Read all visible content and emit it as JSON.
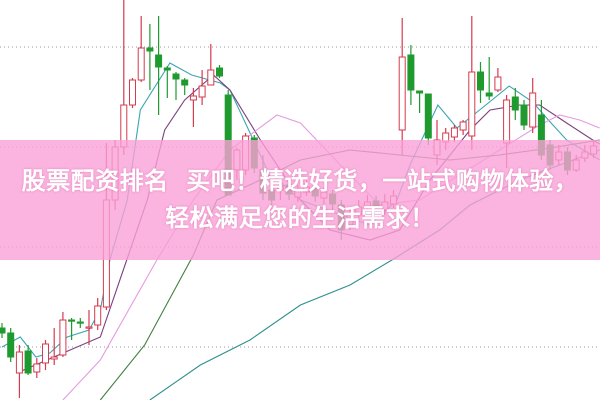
{
  "banner": {
    "text": "股票配资排名  买吧！精选好货，一站式购物体验，轻松满足您的生活需求！",
    "background_color": "#fba0d7"
  },
  "chart_data": {
    "type": "candlestick",
    "title": "",
    "xlabel": "",
    "ylabel": "",
    "ylim": [
      0,
      40
    ],
    "grid": true,
    "grid_levels": [
      35.3,
      25.3,
      15.3,
      5.3
    ],
    "legend": "none",
    "colors": {
      "up": "#d63a4e",
      "down": "#1f9a2f",
      "grid": "#9a9a9a",
      "ma5": "#3aa6b0",
      "ma10": "#7b3f7f",
      "ma20": "#e59be0",
      "ma30": "#3f7f3f",
      "ma60": "#2e8f8f"
    },
    "candles": [
      [
        7.2,
        7.7,
        6.2,
        6.7
      ],
      [
        6.7,
        7.2,
        3.8,
        4.3
      ],
      [
        2.7,
        5.5,
        0.2,
        4.8
      ],
      [
        4.9,
        5.5,
        2.5,
        2.7
      ],
      [
        2.8,
        4.2,
        2.2,
        3.6
      ],
      [
        3.7,
        6.0,
        3.0,
        5.6
      ],
      [
        4.1,
        7.2,
        3.5,
        4.3
      ],
      [
        4.5,
        8.8,
        4.3,
        8.0
      ],
      [
        8.0,
        8.2,
        6.0,
        7.9
      ],
      [
        7.8,
        8.2,
        7.2,
        7.7
      ],
      [
        7.2,
        9.0,
        5.5,
        7.3
      ],
      [
        7.5,
        10.2,
        7.0,
        9.4
      ],
      [
        9.3,
        25.7,
        9.0,
        20.0
      ],
      [
        20.0,
        26.0,
        19.0,
        25.3
      ],
      [
        25.3,
        40.0,
        24.5,
        29.5
      ],
      [
        29.5,
        32.2,
        29.2,
        32.0
      ],
      [
        32.0,
        38.4,
        31.8,
        35.2
      ],
      [
        35.2,
        37.6,
        31.0,
        34.9
      ],
      [
        34.5,
        38.4,
        28.5,
        33.3
      ],
      [
        33.2,
        33.4,
        30.2,
        33.0
      ],
      [
        32.6,
        32.8,
        30.0,
        32.1
      ],
      [
        32.0,
        32.2,
        30.5,
        31.5
      ],
      [
        30.0,
        31.2,
        27.3,
        30.4
      ],
      [
        30.3,
        33.0,
        29.5,
        31.4
      ],
      [
        31.5,
        35.6,
        31.5,
        33.0
      ],
      [
        33.2,
        33.5,
        32.2,
        32.4
      ],
      [
        30.5,
        31.0,
        20.5,
        20.5
      ],
      [
        23.0,
        25.2,
        22.0,
        25.0
      ],
      [
        23.0,
        26.7,
        22.5,
        26.4
      ],
      [
        26.2,
        26.5,
        22.7,
        23.2
      ],
      [
        23.0,
        24.5,
        20.0,
        20.7
      ],
      [
        21.0,
        21.5,
        19.5,
        20.0
      ],
      [
        21.0,
        22.0,
        20.0,
        21.4
      ],
      [
        21.5,
        22.0,
        20.0,
        20.6
      ],
      [
        20.3,
        21.5,
        19.8,
        20.9
      ],
      [
        20.8,
        22.0,
        20.4,
        21.3
      ],
      [
        21.2,
        21.6,
        19.8,
        20.4
      ],
      [
        20.2,
        21.2,
        19.6,
        20.8
      ],
      [
        20.6,
        21.0,
        19.0,
        19.6
      ],
      [
        19.5,
        20.0,
        16.0,
        17.0
      ],
      [
        17.5,
        19.2,
        17.0,
        18.6
      ],
      [
        18.5,
        20.0,
        18.0,
        19.3
      ],
      [
        19.2,
        20.5,
        18.7,
        19.8
      ],
      [
        19.9,
        20.4,
        18.8,
        19.2
      ],
      [
        19.0,
        20.6,
        18.5,
        19.8
      ],
      [
        19.6,
        21.0,
        19.2,
        20.4
      ],
      [
        27.0,
        38.2,
        24.5,
        34.3
      ],
      [
        34.5,
        35.5,
        29.5,
        31.0
      ],
      [
        30.9,
        30.9,
        28.7,
        30.7
      ],
      [
        30.6,
        30.6,
        25.5,
        26.2
      ],
      [
        24.5,
        28.0,
        23.5,
        26.0
      ],
      [
        25.8,
        27.2,
        25.0,
        26.7
      ],
      [
        26.3,
        27.5,
        25.8,
        27.2
      ],
      [
        27.0,
        28.0,
        26.5,
        27.8
      ],
      [
        26.4,
        38.4,
        25.0,
        32.8
      ],
      [
        32.8,
        33.8,
        29.7,
        31.0
      ],
      [
        30.7,
        34.3,
        30.0,
        30.4
      ],
      [
        31.0,
        33.2,
        30.8,
        32.3
      ],
      [
        25.7,
        30.5,
        23.2,
        30.0
      ],
      [
        30.3,
        31.2,
        28.0,
        29.0
      ],
      [
        29.5,
        30.0,
        27.0,
        27.5
      ],
      [
        27.3,
        32.2,
        26.7,
        30.7
      ],
      [
        28.5,
        30.0,
        24.0,
        24.5
      ],
      [
        25.5,
        26.0,
        23.0,
        23.5
      ],
      [
        24.0,
        25.5,
        23.5,
        24.8
      ],
      [
        24.8,
        25.3,
        22.5,
        23.0
      ],
      [
        23.0,
        24.5,
        22.8,
        24.0
      ],
      [
        24.2,
        25.5,
        23.8,
        24.8
      ],
      [
        24.6,
        26.0,
        24.2,
        25.4
      ]
    ],
    "candle_fields": [
      "open",
      "high",
      "low",
      "close"
    ],
    "moving_averages": [
      {
        "key": "ma5",
        "points": [
          [
            0,
            5.3
          ],
          [
            2.1,
            6.3
          ],
          [
            3.9,
            4.3
          ],
          [
            5.5,
            4.7
          ],
          [
            7.5,
            6.3
          ],
          [
            10,
            7
          ],
          [
            11.3,
            9
          ],
          [
            12.4,
            14
          ],
          [
            14.4,
            20
          ],
          [
            15.9,
            29
          ],
          [
            19.3,
            33.7
          ],
          [
            21.8,
            32.5
          ],
          [
            25.1,
            31.7
          ],
          [
            26.2,
            31
          ],
          [
            30.5,
            23
          ],
          [
            34.3,
            20
          ],
          [
            38.9,
            18.5
          ],
          [
            42.3,
            17.5
          ],
          [
            45.4,
            20
          ],
          [
            46.9,
            23.5
          ],
          [
            50.1,
            29.5
          ],
          [
            52.3,
            27.2
          ],
          [
            54.9,
            29
          ],
          [
            58.3,
            31.4
          ],
          [
            61,
            29.8
          ],
          [
            62.8,
            28
          ],
          [
            64.9,
            26
          ],
          [
            68.7,
            24
          ]
        ]
      },
      {
        "key": "ma10",
        "points": [
          [
            1.7,
            2.7
          ],
          [
            11.3,
            6.3
          ],
          [
            16.7,
            20
          ],
          [
            18.7,
            27
          ],
          [
            21,
            30
          ],
          [
            24.3,
            32.5
          ],
          [
            26.2,
            31
          ],
          [
            29.7,
            26
          ],
          [
            34.3,
            20
          ],
          [
            37.7,
            17
          ],
          [
            42.3,
            16
          ],
          [
            45.7,
            17
          ],
          [
            49.2,
            22
          ],
          [
            53.8,
            27
          ],
          [
            56.1,
            29
          ],
          [
            59.5,
            29.5
          ],
          [
            61.8,
            29.5
          ],
          [
            64.9,
            27.7
          ],
          [
            67.9,
            26
          ],
          [
            68.7,
            25.6
          ]
        ]
      },
      {
        "key": "ma20",
        "points": [
          [
            7,
            0
          ],
          [
            11.3,
            4
          ],
          [
            17.8,
            14
          ],
          [
            22,
            20
          ],
          [
            26.2,
            25
          ],
          [
            31.6,
            28.5
          ],
          [
            34.3,
            27.7
          ],
          [
            38.9,
            23.5
          ],
          [
            43.4,
            19.5
          ],
          [
            48,
            20
          ],
          [
            52.6,
            22.5
          ],
          [
            57.2,
            25
          ],
          [
            61.8,
            27.5
          ],
          [
            64.1,
            28.5
          ],
          [
            66.4,
            28
          ],
          [
            68.7,
            27.2
          ]
        ]
      },
      {
        "key": "ma30",
        "points": [
          [
            11.3,
            0
          ],
          [
            16.4,
            5.5
          ],
          [
            22,
            14.5
          ],
          [
            24.7,
            20
          ],
          [
            29.7,
            22
          ],
          [
            34.3,
            24
          ],
          [
            40,
            25
          ],
          [
            45.7,
            24.5
          ],
          [
            51.5,
            24
          ],
          [
            57.2,
            24.5
          ],
          [
            63,
            25.2
          ],
          [
            68.7,
            26
          ]
        ]
      },
      {
        "key": "ma60",
        "points": [
          [
            17,
            0
          ],
          [
            22.8,
            3.5
          ],
          [
            28.5,
            6
          ],
          [
            34.3,
            9.5
          ],
          [
            40,
            11.5
          ],
          [
            45.2,
            14.2
          ],
          [
            50.3,
            17
          ],
          [
            53.8,
            19.5
          ],
          [
            59.5,
            22
          ],
          [
            64.1,
            23.5
          ],
          [
            68.7,
            25
          ]
        ]
      }
    ]
  }
}
